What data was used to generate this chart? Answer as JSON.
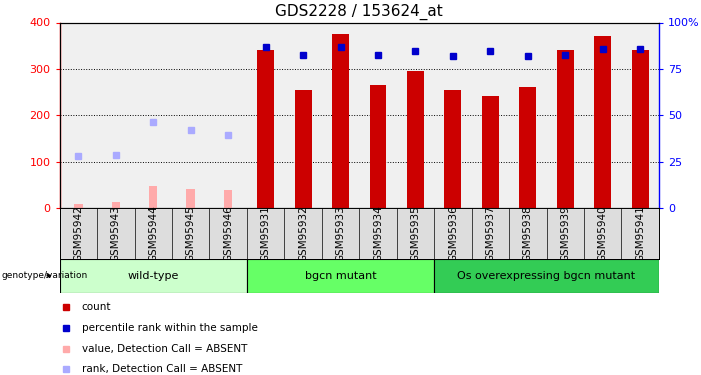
{
  "title": "GDS2228 / 153624_at",
  "samples": [
    "GSM95942",
    "GSM95943",
    "GSM95944",
    "GSM95945",
    "GSM95946",
    "GSM95931",
    "GSM95932",
    "GSM95933",
    "GSM95934",
    "GSM95935",
    "GSM95936",
    "GSM95937",
    "GSM95938",
    "GSM95939",
    "GSM95940",
    "GSM95941"
  ],
  "count_values": [
    null,
    null,
    null,
    null,
    null,
    340,
    255,
    375,
    265,
    295,
    255,
    242,
    260,
    340,
    370,
    340
  ],
  "rank_values": [
    null,
    null,
    null,
    null,
    null,
    348,
    330,
    348,
    330,
    338,
    328,
    338,
    328,
    330,
    342,
    342
  ],
  "absent_count": [
    8,
    14,
    48,
    42,
    38,
    null,
    null,
    null,
    null,
    null,
    null,
    null,
    null,
    null,
    null,
    null
  ],
  "absent_rank": [
    112,
    115,
    185,
    168,
    158,
    null,
    null,
    null,
    null,
    null,
    null,
    null,
    null,
    null,
    null,
    null
  ],
  "groups": [
    {
      "label": "wild-type",
      "start": 0,
      "end": 5,
      "color": "#ccffcc"
    },
    {
      "label": "bgcn mutant",
      "start": 5,
      "end": 10,
      "color": "#66ff66"
    },
    {
      "label": "Os overexpressing bgcn mutant",
      "start": 10,
      "end": 16,
      "color": "#33cc55"
    }
  ],
  "ylim": [
    0,
    400
  ],
  "y2lim": [
    0,
    100
  ],
  "yticks": [
    0,
    100,
    200,
    300,
    400
  ],
  "y2ticks": [
    0,
    25,
    50,
    75,
    100
  ],
  "bar_color": "#cc0000",
  "rank_color": "#0000cc",
  "absent_bar_color": "#ffaaaa",
  "absent_rank_color": "#aaaaff",
  "bg_color": "#ffffff",
  "grid_dotted_levels": [
    100,
    200,
    300
  ],
  "xlabel_fontsize": 7.5,
  "title_fontsize": 11,
  "legend_items": [
    {
      "color": "#cc0000",
      "label": "count"
    },
    {
      "color": "#0000cc",
      "label": "percentile rank within the sample"
    },
    {
      "color": "#ffaaaa",
      "label": "value, Detection Call = ABSENT"
    },
    {
      "color": "#aaaaff",
      "label": "rank, Detection Call = ABSENT"
    }
  ]
}
